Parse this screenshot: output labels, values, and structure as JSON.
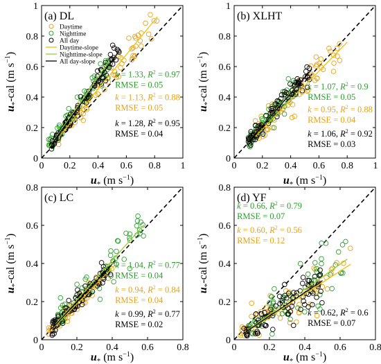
{
  "axis_text": {
    "ylabel_main": "u",
    "ylabel_sub": "*",
    "ylabel_suffix": "-cal (m s",
    "ylabel_exp": "−1",
    "ylabel_close": ")",
    "xlabel_main": "u",
    "xlabel_sub": "*",
    "xlabel_suffix": " (m s",
    "xlabel_exp": "−1",
    "xlabel_close": ")"
  },
  "colors": {
    "daytime": "#e8a317",
    "nighttime": "#2ca02c",
    "allday": "#000000",
    "daytime_line": "#f0c000",
    "nighttime_line": "#9acd32",
    "allday_line": "#000000"
  },
  "chart_data": [
    {
      "type": "scatter",
      "title": "(a) DL",
      "xlim": [
        0,
        1
      ],
      "ylim": [
        0,
        1
      ],
      "xticks": [
        "0",
        "0.2",
        "0.4",
        "0.6",
        "0.8",
        "1"
      ],
      "yticks": [
        "0",
        "0.2",
        "0.4",
        "0.6",
        "0.8",
        "1"
      ],
      "tick_values": [
        0,
        0.2,
        0.4,
        0.6,
        0.8,
        1
      ],
      "legend": [
        "Daytime",
        "Nighttime",
        "All day",
        "Daytime-slope",
        "Nighttime-slope",
        "All day-slope"
      ],
      "series": [
        {
          "name": "Daytime",
          "color": "daytime",
          "slope": 1.13,
          "x_range": [
            0.12,
            0.82
          ],
          "y_noise": 0.04
        },
        {
          "name": "Nighttime",
          "color": "nighttime",
          "slope": 1.33,
          "x_range": [
            0.05,
            0.48
          ],
          "y_noise": 0.04
        },
        {
          "name": "All day",
          "color": "allday",
          "slope": 1.28,
          "x_range": [
            0.07,
            0.55
          ],
          "y_noise": 0.03
        }
      ],
      "stats": [
        {
          "series": "Nighttime",
          "k": "1.33",
          "r2": "0.97",
          "rmse": "0.05"
        },
        {
          "series": "Daytime",
          "k": "1.13",
          "r2": "0.88",
          "rmse": "0.05"
        },
        {
          "series": "All day",
          "k": "1.28",
          "r2": "0.95",
          "rmse": "0.04"
        }
      ]
    },
    {
      "type": "scatter",
      "title": "(b) XLHT",
      "xlim": [
        0,
        1
      ],
      "ylim": [
        0,
        1
      ],
      "xticks": [
        "0",
        "0.2",
        "0.4",
        "0.6",
        "0.8",
        "1"
      ],
      "yticks": [
        "0",
        "0.2",
        "0.4",
        "0.6",
        "0.8",
        "1"
      ],
      "tick_values": [
        0,
        0.2,
        0.4,
        0.6,
        0.8,
        1
      ],
      "series": [
        {
          "name": "Daytime",
          "color": "daytime",
          "slope": 0.95,
          "x_range": [
            0.15,
            0.8
          ],
          "y_noise": 0.05
        },
        {
          "name": "Nighttime",
          "color": "nighttime",
          "slope": 1.07,
          "x_range": [
            0.1,
            0.45
          ],
          "y_noise": 0.04
        },
        {
          "name": "All day",
          "color": "allday",
          "slope": 1.06,
          "x_range": [
            0.1,
            0.55
          ],
          "y_noise": 0.03
        }
      ],
      "stats": [
        {
          "series": "Nighttime",
          "k": "1.07",
          "r2": "0.9",
          "rmse": "0.05"
        },
        {
          "series": "Daytime",
          "k": "0.95",
          "r2": "0.88",
          "rmse": "0.04"
        },
        {
          "series": "All day",
          "k": "1.06",
          "r2": "0.92",
          "rmse": "0.03"
        }
      ]
    },
    {
      "type": "scatter",
      "title": "(c) LC",
      "xlim": [
        0,
        0.8
      ],
      "ylim": [
        0,
        0.8
      ],
      "xticks": [
        "0",
        "0.2",
        "0.4",
        "0.6",
        "0.8"
      ],
      "yticks": [
        "0",
        "0.2",
        "0.4",
        "0.6",
        "0.8"
      ],
      "tick_values": [
        0,
        0.2,
        0.4,
        0.6,
        0.8
      ],
      "series": [
        {
          "name": "Daytime",
          "color": "daytime",
          "slope": 0.94,
          "x_range": [
            0.04,
            0.4
          ],
          "y_noise": 0.03
        },
        {
          "name": "Nighttime",
          "color": "nighttime",
          "slope": 1.04,
          "x_range": [
            0.08,
            0.58
          ],
          "y_noise": 0.05
        },
        {
          "name": "All day",
          "color": "allday",
          "slope": 0.99,
          "x_range": [
            0.06,
            0.4
          ],
          "y_noise": 0.03
        }
      ],
      "stats": [
        {
          "series": "Nighttime",
          "k": "1.04",
          "r2": "0.77",
          "rmse": "0.04"
        },
        {
          "series": "Daytime",
          "k": "0.94",
          "r2": "0.84",
          "rmse": "0.04"
        },
        {
          "series": "All day",
          "k": "0.99",
          "r2": "0.77",
          "rmse": "0.02"
        }
      ]
    },
    {
      "type": "scatter",
      "title": "(d) YF",
      "xlim": [
        0,
        0.8
      ],
      "ylim": [
        0,
        0.8
      ],
      "xticks": [
        "0",
        "0.2",
        "0.4",
        "0.6",
        "0.8"
      ],
      "yticks": [
        "0",
        "0.2",
        "0.4",
        "0.6",
        "0.8"
      ],
      "tick_values": [
        0,
        0.2,
        0.4,
        0.6,
        0.8
      ],
      "series": [
        {
          "name": "Daytime",
          "color": "daytime",
          "slope": 0.6,
          "x_range": [
            0.03,
            0.66
          ],
          "y_noise": 0.06
        },
        {
          "name": "Nighttime",
          "color": "nighttime",
          "slope": 0.66,
          "x_range": [
            0.08,
            0.64
          ],
          "y_noise": 0.07
        },
        {
          "name": "All day",
          "color": "allday",
          "slope": 0.62,
          "x_range": [
            0.05,
            0.5
          ],
          "y_noise": 0.05
        }
      ],
      "stats": [
        {
          "series": "Nighttime",
          "k": "0.66",
          "r2": "0.79",
          "rmse": "0.07"
        },
        {
          "series": "Daytime",
          "k": "0.60",
          "r2": "0.56",
          "rmse": "0.12"
        },
        {
          "series": "All day",
          "k": "0.62",
          "r2": "0.6",
          "rmse": "0.07"
        }
      ]
    }
  ]
}
